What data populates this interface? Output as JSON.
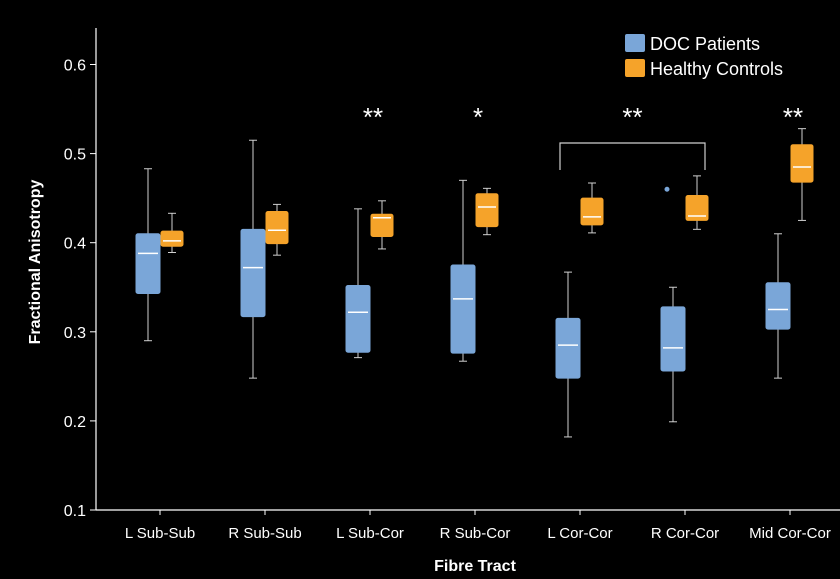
{
  "chart_data": {
    "type": "box",
    "xlabel": "Fibre Tract",
    "ylabel": "Fractional Anisotropy",
    "ylim": [
      0.1,
      0.65
    ],
    "yticks": [
      0.1,
      0.2,
      0.3,
      0.4,
      0.5,
      0.6
    ],
    "ytick_labels": [
      "0.1",
      "0.2",
      "0.3",
      "0.4",
      "0.5",
      "0.6"
    ],
    "categories": [
      "L Sub-Sub",
      "R Sub-Sub",
      "L Sub-Cor",
      "R Sub-Cor",
      "L Cor-Cor",
      "R Cor-Cor",
      "Mid Cor-Cor"
    ],
    "legend_position": "top-right",
    "series": [
      {
        "name": "DOC Patients",
        "color": "#7aa6d8",
        "boxes": [
          {
            "min": 0.29,
            "q1": 0.343,
            "median": 0.388,
            "q3": 0.41,
            "max": 0.483
          },
          {
            "min": 0.248,
            "q1": 0.317,
            "median": 0.372,
            "q3": 0.415,
            "max": 0.515
          },
          {
            "min": 0.271,
            "q1": 0.277,
            "median": 0.322,
            "q3": 0.352,
            "max": 0.438
          },
          {
            "min": 0.267,
            "q1": 0.276,
            "median": 0.337,
            "q3": 0.375,
            "max": 0.47
          },
          {
            "min": 0.182,
            "q1": 0.248,
            "median": 0.285,
            "q3": 0.315,
            "max": 0.367
          },
          {
            "min": 0.199,
            "q1": 0.256,
            "median": 0.282,
            "q3": 0.328,
            "max": 0.35
          },
          {
            "min": 0.248,
            "q1": 0.303,
            "median": 0.325,
            "q3": 0.355,
            "max": 0.41
          }
        ],
        "outliers": [
          {
            "category": "R Cor-Cor",
            "value": 0.46
          }
        ]
      },
      {
        "name": "Healthy Controls",
        "color": "#f5a32a",
        "boxes": [
          {
            "min": 0.389,
            "q1": 0.396,
            "median": 0.402,
            "q3": 0.413,
            "max": 0.433
          },
          {
            "min": 0.386,
            "q1": 0.399,
            "median": 0.414,
            "q3": 0.435,
            "max": 0.443
          },
          {
            "min": 0.393,
            "q1": 0.407,
            "median": 0.428,
            "q3": 0.432,
            "max": 0.447
          },
          {
            "min": 0.409,
            "q1": 0.418,
            "median": 0.44,
            "q3": 0.455,
            "max": 0.461
          },
          {
            "min": 0.411,
            "q1": 0.42,
            "median": 0.429,
            "q3": 0.45,
            "max": 0.467
          },
          {
            "min": 0.415,
            "q1": 0.425,
            "median": 0.43,
            "q3": 0.453,
            "max": 0.475
          },
          {
            "min": 0.425,
            "q1": 0.468,
            "median": 0.485,
            "q3": 0.51,
            "max": 0.528
          }
        ],
        "outliers": []
      }
    ],
    "annotations": [
      {
        "text": "**",
        "category": "L Sub-Cor"
      },
      {
        "text": "*",
        "category": "R Sub-Cor"
      },
      {
        "text": "**",
        "categories": [
          "L Cor-Cor",
          "R Cor-Cor"
        ],
        "bracket": true
      },
      {
        "text": "**",
        "category": "Mid Cor-Cor"
      }
    ]
  }
}
